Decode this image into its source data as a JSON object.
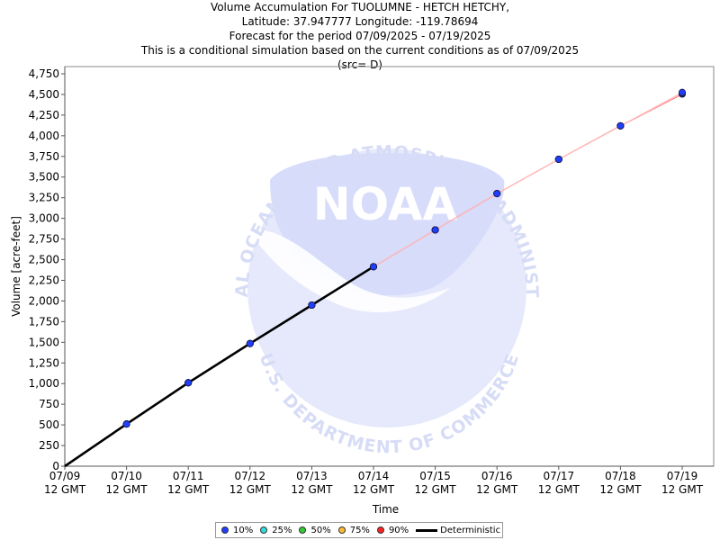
{
  "title": {
    "line1": "Volume Accumulation For TUOLUMNE - HETCH HETCHY,",
    "line2": "Latitude: 37.947777 Longitude: -119.78694",
    "line3": "Forecast for the period 07/09/2025 - 07/19/2025",
    "line4": "This is a conditional simulation based on the current conditions as of 07/09/2025",
    "line5": "(src= D)"
  },
  "watermark": {
    "logo_text": "NOAA",
    "ring_top": "NATIONAL OCEANIC AND ATMOSPHERIC ADMINISTRATION",
    "ring_bottom": "U.S. DEPARTMENT OF COMMERCE"
  },
  "chart_data": {
    "type": "line",
    "title": "Volume Accumulation For TUOLUMNE - HETCH HETCHY,",
    "xlabel": "Time",
    "ylabel": "Volume [acre-feet]",
    "ylim": [
      0,
      4750
    ],
    "yticks": [
      0,
      250,
      500,
      750,
      1000,
      1250,
      1500,
      1750,
      2000,
      2250,
      2500,
      2750,
      3000,
      3250,
      3500,
      3750,
      4000,
      4250,
      4500,
      4750
    ],
    "ytick_labels": [
      "0",
      "250",
      "500",
      "750",
      "1,000",
      "1,250",
      "1,500",
      "1,750",
      "2,000",
      "2,250",
      "2,500",
      "2,750",
      "3,000",
      "3,250",
      "3,500",
      "3,750",
      "4,000",
      "4,250",
      "4,500",
      "4,750"
    ],
    "x_categories": [
      "07/09",
      "07/10",
      "07/11",
      "07/12",
      "07/13",
      "07/14",
      "07/15",
      "07/16",
      "07/17",
      "07/18",
      "07/19"
    ],
    "x_sublabel": "12 GMT",
    "grid": false,
    "legend_placement": "bottom-center",
    "series": [
      {
        "name": "10%",
        "color": "#1f3fff",
        "values": [
          null,
          510,
          1010,
          1485,
          1950,
          2415,
          2860,
          3300,
          3715,
          4120,
          4525
        ]
      },
      {
        "name": "25%",
        "color": "#33dddd",
        "values": [
          null,
          510,
          1010,
          1485,
          1950,
          2415,
          2860,
          3300,
          3715,
          4120,
          4520
        ]
      },
      {
        "name": "50%",
        "color": "#33cc33",
        "values": [
          null,
          510,
          1010,
          1485,
          1950,
          2415,
          2860,
          3300,
          3715,
          4120,
          4515
        ]
      },
      {
        "name": "75%",
        "color": "#ffbb33",
        "values": [
          null,
          510,
          1010,
          1485,
          1950,
          2415,
          2860,
          3300,
          3715,
          4120,
          4510
        ]
      },
      {
        "name": "90%",
        "color": "#ff2222",
        "values": [
          null,
          510,
          1010,
          1485,
          1950,
          2415,
          2860,
          3300,
          3715,
          4120,
          4505
        ]
      },
      {
        "name": "Deterministic",
        "color": "#000000",
        "values": [
          0,
          510,
          1010,
          1485,
          1950,
          2415,
          null,
          null,
          null,
          null,
          null
        ]
      }
    ]
  },
  "legend": {
    "items": [
      {
        "label": "10%",
        "color": "#1f3fff",
        "kind": "dot"
      },
      {
        "label": "25%",
        "color": "#33dddd",
        "kind": "dot"
      },
      {
        "label": "50%",
        "color": "#33cc33",
        "kind": "dot"
      },
      {
        "label": "75%",
        "color": "#ffbb33",
        "kind": "dot"
      },
      {
        "label": "90%",
        "color": "#ff2222",
        "kind": "dot"
      },
      {
        "label": "Deterministic",
        "color": "#000000",
        "kind": "line"
      }
    ]
  }
}
